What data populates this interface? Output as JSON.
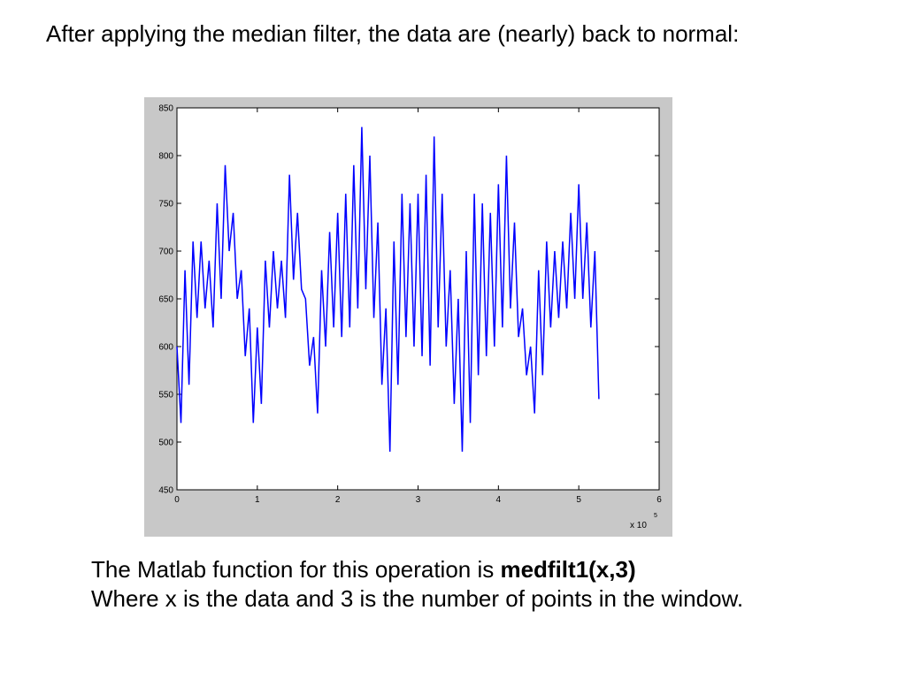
{
  "header": {
    "text": "After applying the median filter, the data are (nearly) back to normal:"
  },
  "chart_data": {
    "type": "line",
    "x_multiplier": {
      "base": "x 10",
      "exponent": "5"
    },
    "xlim": [
      0,
      6
    ],
    "xticks": [
      0,
      1,
      2,
      3,
      4,
      5,
      6
    ],
    "ylim": [
      450,
      850
    ],
    "yticks": [
      450,
      500,
      550,
      600,
      650,
      700,
      750,
      800,
      850
    ],
    "grid": false,
    "series": [
      {
        "color": "#0000ff",
        "x": [
          0,
          0.05,
          0.1,
          0.15,
          0.2,
          0.25,
          0.3,
          0.35,
          0.4,
          0.45,
          0.5,
          0.55,
          0.6,
          0.65,
          0.7,
          0.75,
          0.8,
          0.85,
          0.9,
          0.95,
          1,
          1.05,
          1.1,
          1.15,
          1.2,
          1.25,
          1.3,
          1.35,
          1.4,
          1.45,
          1.5,
          1.55,
          1.6,
          1.65,
          1.7,
          1.75,
          1.8,
          1.85,
          1.9,
          1.95,
          2,
          2.05,
          2.1,
          2.15,
          2.2,
          2.25,
          2.3,
          2.35,
          2.4,
          2.45,
          2.5,
          2.55,
          2.6,
          2.65,
          2.7,
          2.75,
          2.8,
          2.85,
          2.9,
          2.95,
          3,
          3.05,
          3.1,
          3.15,
          3.2,
          3.25,
          3.3,
          3.35,
          3.4,
          3.45,
          3.5,
          3.55,
          3.6,
          3.65,
          3.7,
          3.75,
          3.8,
          3.85,
          3.9,
          3.95,
          4,
          4.05,
          4.1,
          4.15,
          4.2,
          4.25,
          4.3,
          4.35,
          4.4,
          4.45,
          4.5,
          4.55,
          4.6,
          4.65,
          4.7,
          4.75,
          4.8,
          4.85,
          4.9,
          4.95,
          5,
          5.05,
          5.1,
          5.15,
          5.2,
          5.25
        ],
        "values": [
          600,
          520,
          680,
          560,
          710,
          630,
          710,
          640,
          690,
          620,
          750,
          650,
          790,
          700,
          740,
          650,
          680,
          590,
          640,
          520,
          620,
          540,
          690,
          620,
          700,
          640,
          690,
          630,
          780,
          670,
          740,
          660,
          650,
          580,
          610,
          530,
          680,
          600,
          720,
          620,
          740,
          610,
          760,
          620,
          790,
          640,
          830,
          660,
          800,
          630,
          730,
          560,
          640,
          490,
          710,
          560,
          760,
          610,
          750,
          600,
          760,
          590,
          780,
          580,
          820,
          620,
          760,
          600,
          680,
          540,
          650,
          490,
          700,
          520,
          760,
          570,
          750,
          590,
          740,
          600,
          770,
          620,
          800,
          640,
          730,
          610,
          640,
          570,
          600,
          530,
          680,
          570,
          710,
          620,
          700,
          630,
          710,
          640,
          740,
          650,
          770,
          650,
          730,
          620,
          700,
          545
        ]
      }
    ]
  },
  "footer": {
    "intro": "The Matlab function for this operation is ",
    "code": "medfilt1(x,3)",
    "note": "Where x is the data and 3 is the number of points in the window."
  }
}
